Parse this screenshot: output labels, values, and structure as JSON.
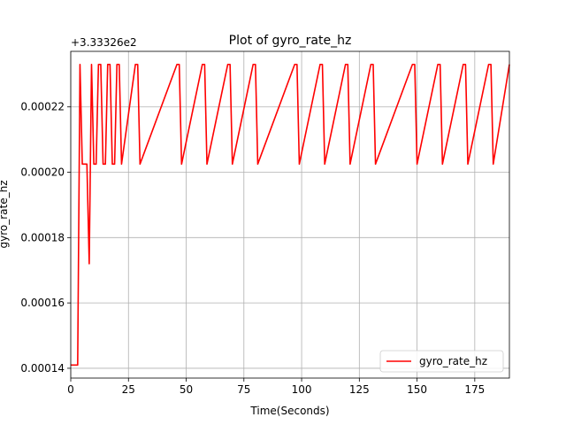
{
  "chart_data": {
    "type": "line",
    "title": "Plot of gyro_rate_hz",
    "xlabel": "Time(Seconds)",
    "ylabel": "gyro_rate_hz",
    "y_offset_text": "+3.33326e2",
    "xlim": [
      0,
      190
    ],
    "ylim": [
      0.000137,
      0.000237
    ],
    "x_ticks": [
      0,
      25,
      50,
      75,
      100,
      125,
      150,
      175
    ],
    "x_tick_labels": [
      "0",
      "25",
      "50",
      "75",
      "100",
      "125",
      "150",
      "175"
    ],
    "y_ticks": [
      0.00014,
      0.00016,
      0.00018,
      0.0002,
      0.00022
    ],
    "y_tick_labels": [
      "0.00014",
      "0.00016",
      "0.00018",
      "0.00020",
      "0.00022"
    ],
    "grid": true,
    "legend_position": "lower-right",
    "series": [
      {
        "name": "gyro_rate_hz",
        "color": "#ff0000",
        "x": [
          0,
          3,
          4,
          5,
          7,
          8,
          9,
          10,
          11,
          12,
          13,
          14,
          15,
          16,
          17,
          18,
          19,
          20,
          21,
          22,
          28,
          29,
          30,
          46,
          47,
          48,
          57,
          58,
          59,
          68,
          69,
          70,
          79,
          80,
          81,
          97,
          98,
          99,
          108,
          109,
          110,
          119,
          120,
          121,
          130,
          131,
          132,
          148,
          149,
          150,
          159,
          160,
          161,
          170,
          171,
          172,
          181,
          182,
          183,
          190
        ],
        "y": [
          0.000141,
          0.000141,
          0.000233,
          0.0002025,
          0.0002025,
          0.000172,
          0.000233,
          0.0002025,
          0.0002025,
          0.000233,
          0.000233,
          0.0002025,
          0.0002025,
          0.000233,
          0.000233,
          0.0002025,
          0.0002025,
          0.000233,
          0.000233,
          0.0002025,
          0.000233,
          0.000233,
          0.0002025,
          0.000233,
          0.000233,
          0.0002025,
          0.000233,
          0.000233,
          0.0002025,
          0.000233,
          0.000233,
          0.0002025,
          0.000233,
          0.000233,
          0.0002025,
          0.000233,
          0.000233,
          0.0002025,
          0.000233,
          0.000233,
          0.0002025,
          0.000233,
          0.000233,
          0.0002025,
          0.000233,
          0.000233,
          0.0002025,
          0.000233,
          0.000233,
          0.0002025,
          0.000233,
          0.000233,
          0.0002025,
          0.000233,
          0.000233,
          0.0002025,
          0.000233,
          0.000233,
          0.0002025,
          0.000233
        ]
      }
    ]
  }
}
